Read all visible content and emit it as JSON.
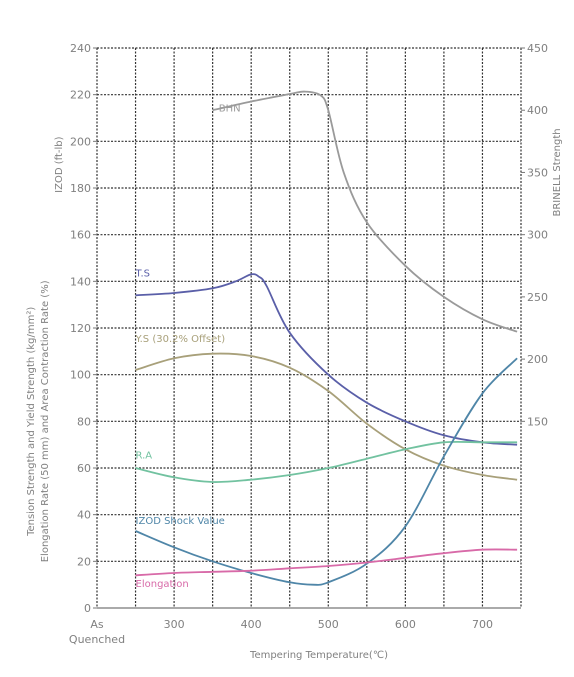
{
  "chart_data": {
    "type": "line",
    "x_ticks": [
      "As",
      "300",
      "400",
      "500",
      "600",
      "700"
    ],
    "x_ticks_line2": [
      "Quenched",
      "",
      "",
      "",
      "",
      ""
    ],
    "x_tick_values": [
      200,
      300,
      400,
      500,
      600,
      700
    ],
    "xlim": [
      200,
      750
    ],
    "xlabel": "Tempering Temperature(℃)",
    "ylim_left": [
      0,
      240
    ],
    "y_ticks_left": [
      0,
      20,
      40,
      60,
      80,
      100,
      120,
      140,
      160,
      180,
      200,
      220,
      240
    ],
    "ylabel_left_upper": "IZOD (ft-lb)",
    "ylabel_left_lower_1": "Tension Strength and Yield Strength (kg/mm²)",
    "ylabel_left_lower_2": "Elongation Rate (50 mm) and Area Contraction Rate (%)",
    "ylim_right": [
      0,
      450
    ],
    "y_ticks_right": [
      150,
      200,
      250,
      300,
      350,
      400,
      450
    ],
    "ylabel_right": "BRINELL Strength",
    "grid": true,
    "series": [
      {
        "name": "BHN",
        "axis": "right",
        "color": "#9a9a9a",
        "x": [
          350,
          400,
          450,
          470,
          490,
          500,
          520,
          550,
          600,
          650,
          700,
          745
        ],
        "y": [
          400,
          407,
          413,
          415,
          412,
          400,
          350,
          310,
          275,
          250,
          232,
          222
        ]
      },
      {
        "name": "T.S",
        "axis": "left",
        "color": "#5a5fa8",
        "x": [
          250,
          300,
          350,
          380,
          400,
          410,
          420,
          450,
          500,
          550,
          600,
          650,
          700,
          745
        ],
        "y": [
          134,
          135,
          137,
          140,
          143,
          142,
          138,
          118,
          100,
          88,
          80,
          74,
          71,
          70
        ]
      },
      {
        "name": "Y.S (30.2% Offset)",
        "axis": "left",
        "color": "#a8a07a",
        "x": [
          250,
          300,
          350,
          400,
          450,
          500,
          550,
          600,
          650,
          700,
          745
        ],
        "y": [
          102,
          107,
          109,
          108,
          103,
          93,
          79,
          68,
          61,
          57,
          55
        ]
      },
      {
        "name": "R.A",
        "axis": "left",
        "color": "#72c2a0",
        "x": [
          250,
          300,
          350,
          400,
          450,
          500,
          550,
          600,
          650,
          700,
          745
        ],
        "y": [
          60,
          56,
          54,
          55,
          57,
          60,
          64,
          68,
          71,
          71,
          71
        ]
      },
      {
        "name": "IZOD Shock Value",
        "axis": "left",
        "color": "#4f86a8",
        "x": [
          250,
          300,
          350,
          400,
          450,
          480,
          500,
          550,
          600,
          650,
          700,
          745
        ],
        "y": [
          33,
          26,
          20,
          15,
          11,
          10,
          11,
          19,
          35,
          65,
          92,
          107
        ]
      },
      {
        "name": "Elongation",
        "axis": "left",
        "color": "#d86aa8",
        "x": [
          250,
          300,
          350,
          400,
          450,
          500,
          550,
          600,
          650,
          700,
          745
        ],
        "y": [
          14,
          15,
          15.5,
          16,
          17,
          18,
          19.5,
          21.5,
          23.5,
          25,
          25
        ]
      }
    ]
  }
}
